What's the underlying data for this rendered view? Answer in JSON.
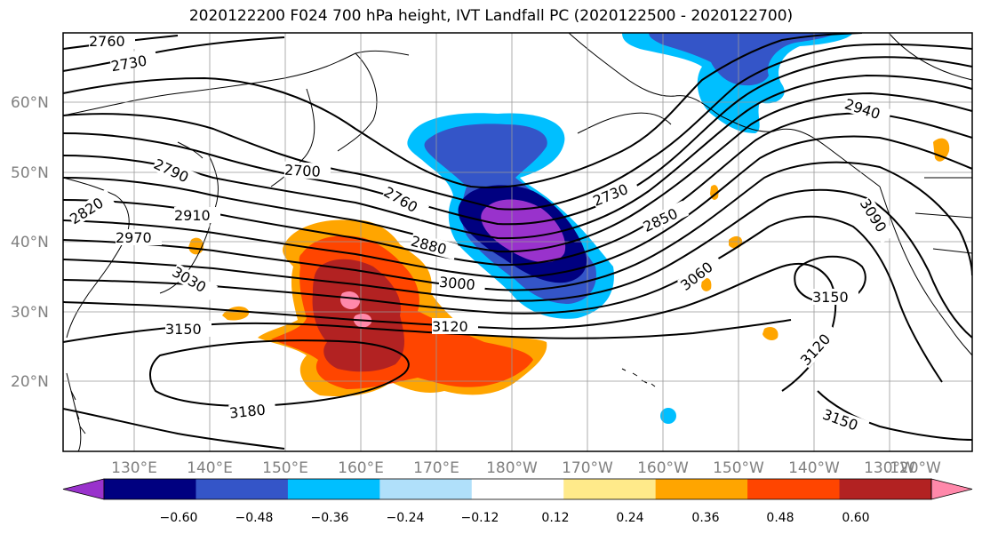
{
  "title": "2020122200 F024 700 hPa height, IVT Landfall PC (2020122500 - 2020122700)",
  "map": {
    "lat_labels": [
      "60°N",
      "50°N",
      "40°N",
      "30°N",
      "20°N"
    ],
    "lon_labels": [
      "130°E",
      "140°E",
      "150°E",
      "160°E",
      "170°E",
      "180°W",
      "170°W",
      "160°W",
      "150°W",
      "140°W",
      "130°W",
      "120°W"
    ],
    "contour_labels": [
      "2760",
      "2730",
      "2790",
      "2820",
      "2910",
      "2970",
      "3030",
      "3150",
      "3180",
      "2700",
      "2760",
      "2880",
      "3000",
      "3120",
      "2730",
      "2850",
      "3060",
      "2940",
      "3090",
      "3150",
      "3120",
      "3150"
    ]
  },
  "colorbar": {
    "ticks": [
      "−0.60",
      "−0.48",
      "−0.36",
      "−0.24",
      "−0.12",
      "0.12",
      "0.24",
      "0.36",
      "0.48",
      "0.60"
    ],
    "colors": [
      "#9932cc",
      "#000080",
      "#3455c8",
      "#00bfff",
      "#b0e0fa",
      "#ffffff",
      "#ffea8a",
      "#ffa500",
      "#ff4500",
      "#b22222",
      "#ff88aa"
    ]
  }
}
